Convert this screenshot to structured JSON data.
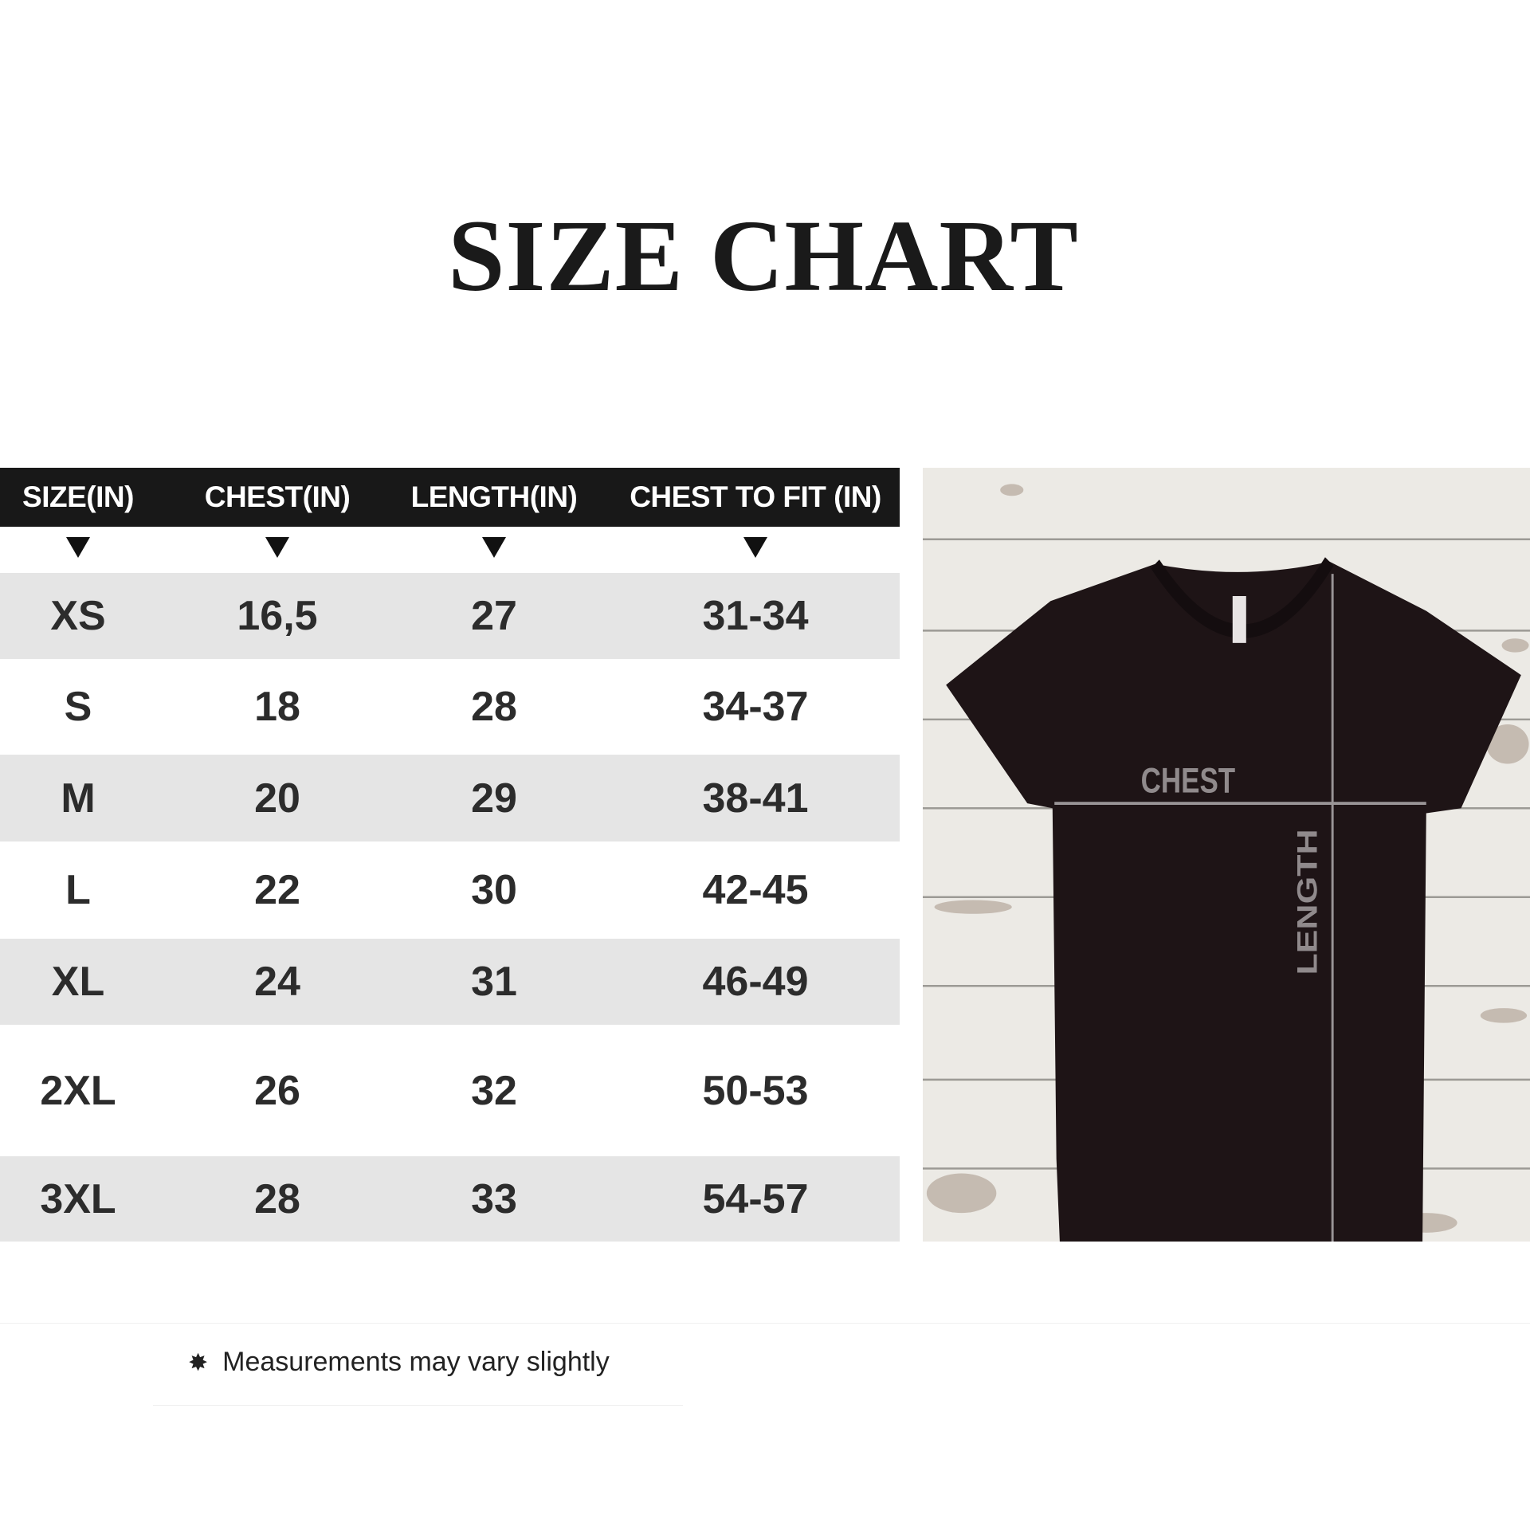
{
  "title": "SIZE CHART",
  "table": {
    "headers": [
      "SIZE(IN)",
      "CHEST(IN)",
      "LENGTH(IN)",
      "CHEST TO FIT (IN)"
    ],
    "rows": [
      [
        "XS",
        "16,5",
        "27",
        "31-34"
      ],
      [
        "S",
        "18",
        "28",
        "34-37"
      ],
      [
        "M",
        "20",
        "29",
        "38-41"
      ],
      [
        "L",
        "22",
        "30",
        "42-45"
      ],
      [
        "XL",
        "24",
        "31",
        "46-49"
      ],
      [
        "2XL",
        "26",
        "32",
        "50-53"
      ],
      [
        "3XL",
        "28",
        "33",
        "54-57"
      ]
    ]
  },
  "diagram": {
    "chest_label": "CHEST",
    "length_label": "LENGTH",
    "shirt_color": "#1e1416",
    "line_color": "#9a9597"
  },
  "footnote": {
    "icon": "asterisk-icon",
    "text": "Measurements may vary slightly"
  }
}
